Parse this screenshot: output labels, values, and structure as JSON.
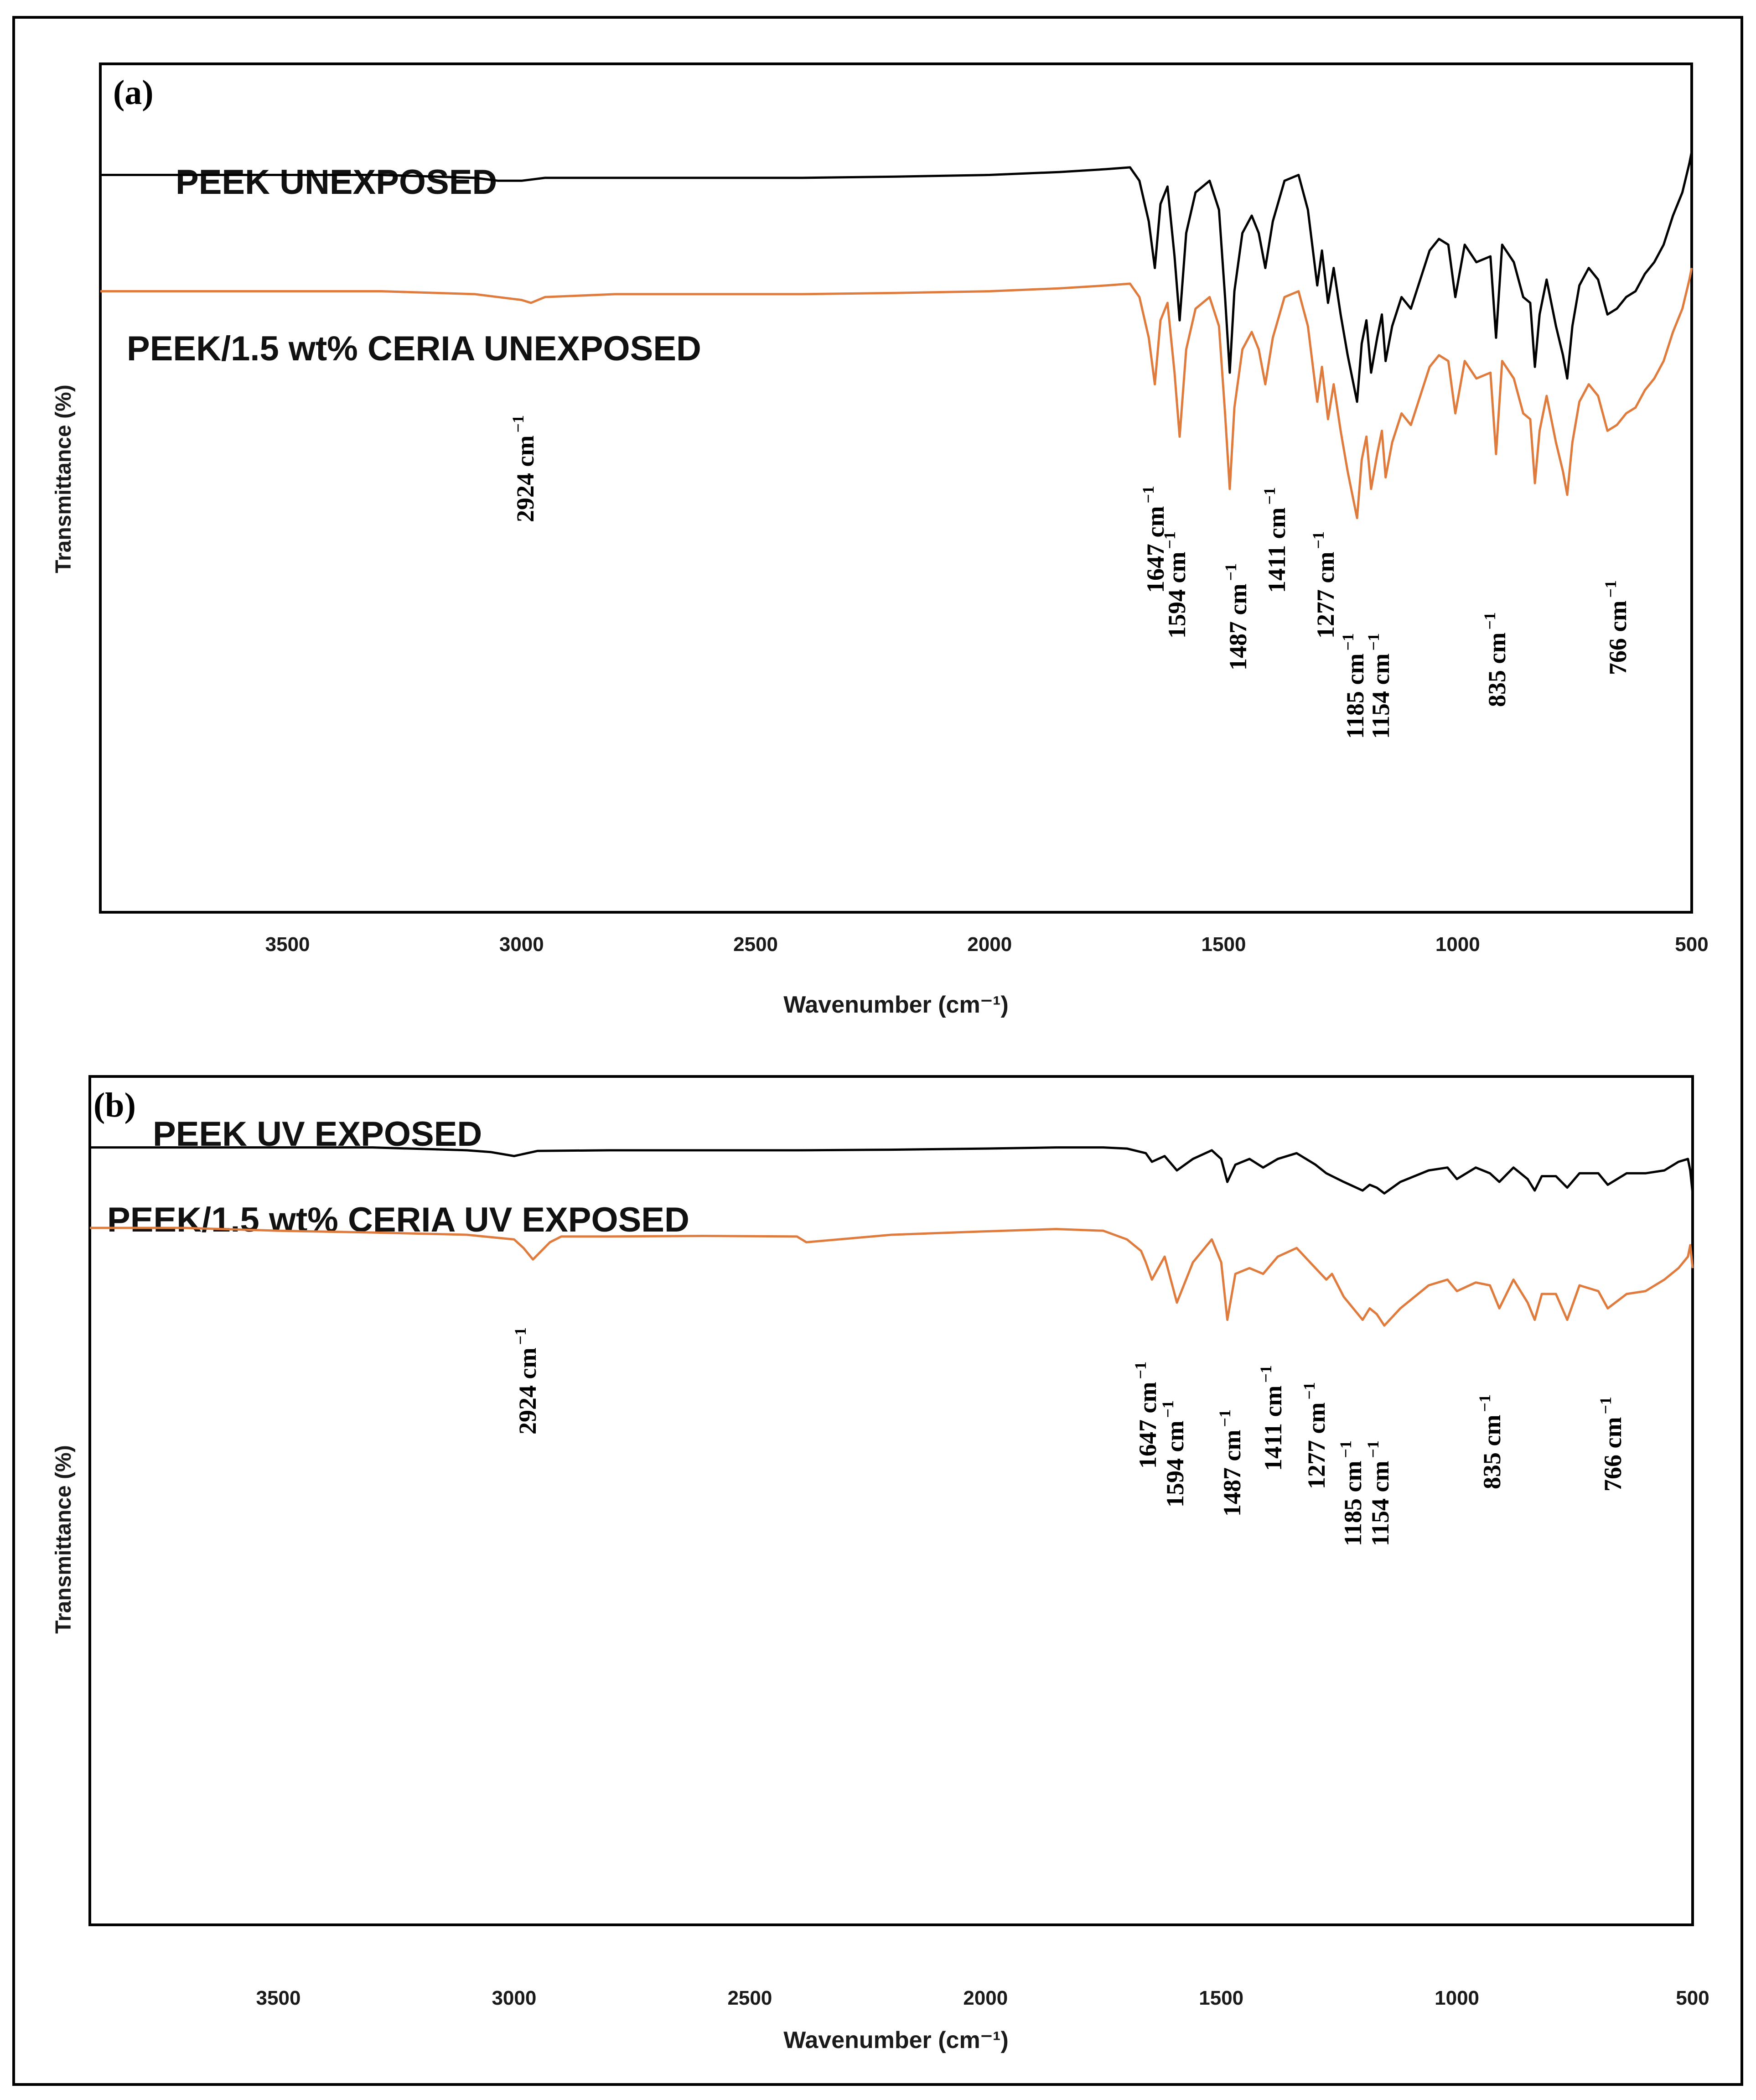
{
  "colors": {
    "unexposed_or_neat": "#000000",
    "ceria": "#e07b3e",
    "frame": "#000000"
  },
  "chart_data": [
    {
      "type": "line",
      "panel_label": "(a)",
      "xlabel": "Wavenumber (cm⁻¹)",
      "ylabel": "Transmittance (%)",
      "xlim": [
        3900,
        500
      ],
      "x_reversed": true,
      "ylim": [
        0,
        100
      ],
      "x_ticks": [
        "3500",
        "3000",
        "2500",
        "2000",
        "1500",
        "1000",
        "500"
      ],
      "grid": false,
      "series": [
        {
          "name": "PEEK UNEXPOSED",
          "color": "#000000",
          "x": [
            3900,
            3700,
            3500,
            3300,
            3100,
            3050,
            3000,
            2950,
            2800,
            2600,
            2400,
            2200,
            2000,
            1850,
            1750,
            1700,
            1680,
            1660,
            1647,
            1635,
            1620,
            1605,
            1594,
            1580,
            1560,
            1530,
            1510,
            1497,
            1487,
            1477,
            1460,
            1440,
            1425,
            1411,
            1395,
            1370,
            1340,
            1320,
            1300,
            1290,
            1277,
            1265,
            1250,
            1235,
            1215,
            1205,
            1195,
            1185,
            1172,
            1162,
            1154,
            1140,
            1120,
            1100,
            1060,
            1040,
            1020,
            1005,
            985,
            960,
            930,
            918,
            905,
            880,
            860,
            845,
            835,
            825,
            810,
            790,
            775,
            766,
            755,
            740,
            720,
            700,
            680,
            660,
            640,
            620,
            600,
            580,
            560,
            540,
            520,
            505,
            500
          ],
          "y": [
            86,
            86,
            86,
            86,
            85.5,
            85,
            85,
            85.5,
            85.5,
            85.5,
            85.5,
            85.7,
            86,
            86.5,
            87,
            87.3,
            85,
            78,
            70,
            81,
            84,
            72,
            61,
            76,
            83,
            85,
            80,
            65,
            52,
            66,
            76,
            79,
            76,
            70,
            78,
            85,
            86,
            80,
            67,
            73,
            64,
            70,
            62,
            55,
            47,
            57,
            61,
            52,
            58,
            62,
            54,
            60,
            65,
            63,
            73,
            75,
            74,
            65,
            74,
            71,
            72,
            58,
            74,
            71,
            65,
            64,
            53,
            62,
            68,
            60,
            55,
            51,
            60,
            67,
            70,
            68,
            62,
            63,
            65,
            66,
            69,
            71,
            74,
            79,
            83,
            88,
            90
          ]
        },
        {
          "name": "PEEK/1.5 wt% CERIA UNEXPOSED",
          "color": "#e07b3e",
          "x": [
            3900,
            3700,
            3500,
            3300,
            3100,
            3050,
            3000,
            2980,
            2950,
            2800,
            2600,
            2400,
            2200,
            2000,
            1850,
            1750,
            1700,
            1680,
            1660,
            1647,
            1635,
            1620,
            1605,
            1594,
            1580,
            1560,
            1530,
            1510,
            1497,
            1487,
            1477,
            1460,
            1440,
            1425,
            1411,
            1395,
            1370,
            1340,
            1320,
            1300,
            1290,
            1277,
            1265,
            1250,
            1235,
            1215,
            1205,
            1195,
            1185,
            1172,
            1162,
            1154,
            1140,
            1120,
            1100,
            1060,
            1040,
            1020,
            1005,
            985,
            960,
            930,
            918,
            905,
            880,
            860,
            845,
            835,
            825,
            810,
            790,
            775,
            766,
            755,
            740,
            720,
            700,
            680,
            660,
            640,
            620,
            600,
            580,
            560,
            540,
            520,
            505,
            500
          ],
          "y": [
            66,
            66,
            66,
            66,
            65.5,
            65,
            64.5,
            64,
            65,
            65.5,
            65.5,
            65.5,
            65.7,
            66,
            66.5,
            67,
            67.3,
            65,
            58,
            50,
            61,
            64,
            52,
            41,
            56,
            63,
            65,
            60,
            45,
            32,
            46,
            56,
            59,
            56,
            50,
            58,
            65,
            66,
            60,
            47,
            53,
            44,
            50,
            42,
            35,
            27,
            37,
            41,
            32,
            38,
            42,
            34,
            40,
            45,
            43,
            53,
            55,
            54,
            45,
            54,
            51,
            52,
            38,
            54,
            51,
            45,
            44,
            33,
            42,
            48,
            40,
            35,
            31,
            40,
            47,
            50,
            48,
            42,
            43,
            45,
            46,
            49,
            51,
            54,
            59,
            63,
            68,
            70
          ]
        }
      ],
      "annotations": [
        {
          "wavenumber": 2924,
          "label": "2924 cm",
          "superscript": "−1"
        },
        {
          "wavenumber": 1647,
          "label": "1647 cm",
          "superscript": "−1"
        },
        {
          "wavenumber": 1594,
          "label": "1594 cm",
          "superscript": "−1"
        },
        {
          "wavenumber": 1487,
          "label": "1487 cm",
          "superscript": "−1"
        },
        {
          "wavenumber": 1411,
          "label": "1411 cm",
          "superscript": "−1"
        },
        {
          "wavenumber": 1277,
          "label": "1277 cm",
          "superscript": "−1"
        },
        {
          "wavenumber": 1185,
          "label": "1185 cm",
          "superscript": "−1"
        },
        {
          "wavenumber": 1154,
          "label": "1154 cm",
          "superscript": "−1"
        },
        {
          "wavenumber": 835,
          "label": "835 cm",
          "superscript": "−1"
        },
        {
          "wavenumber": 766,
          "label": "766 cm",
          "superscript": "−1"
        }
      ]
    },
    {
      "type": "line",
      "panel_label": "(b)",
      "xlabel": "Wavenumber (cm⁻¹)",
      "ylabel": "Transmittance (%)",
      "xlim": [
        3900,
        500
      ],
      "x_reversed": true,
      "ylim": [
        0,
        100
      ],
      "x_ticks": [
        "3500",
        "3000",
        "2500",
        "2000",
        "1500",
        "1000",
        "500"
      ],
      "grid": false,
      "series": [
        {
          "name": "PEEK UV EXPOSED",
          "color": "#000000",
          "x": [
            3900,
            3700,
            3500,
            3300,
            3100,
            3050,
            3000,
            2950,
            2800,
            2600,
            2400,
            2200,
            2000,
            1850,
            1750,
            1700,
            1660,
            1647,
            1620,
            1594,
            1560,
            1520,
            1500,
            1487,
            1470,
            1440,
            1411,
            1380,
            1340,
            1300,
            1277,
            1240,
            1200,
            1185,
            1170,
            1154,
            1120,
            1060,
            1020,
            1000,
            960,
            930,
            910,
            880,
            850,
            835,
            820,
            790,
            766,
            740,
            700,
            680,
            640,
            600,
            560,
            530,
            510,
            505,
            500
          ],
          "y": [
            94,
            94,
            94,
            94,
            93.5,
            93.2,
            92.5,
            93.4,
            93.5,
            93.5,
            93.5,
            93.6,
            93.8,
            94,
            94,
            93.8,
            93,
            91.5,
            92.5,
            90,
            92,
            93.5,
            92,
            88,
            91,
            92,
            90.5,
            92,
            93,
            91,
            89.5,
            88,
            86.5,
            87.5,
            87,
            86,
            88,
            90,
            90.5,
            88.5,
            90.5,
            89.5,
            88,
            90.5,
            88.5,
            86.5,
            89,
            89,
            87,
            89.5,
            89.5,
            87.5,
            89.5,
            89.5,
            90,
            91.5,
            92,
            90,
            86
          ]
        },
        {
          "name": "PEEK/1.5 wt% CERIA UV EXPOSED",
          "color": "#e07b3e",
          "x": [
            3900,
            3700,
            3500,
            3300,
            3100,
            3050,
            3000,
            2980,
            2960,
            2924,
            2900,
            2800,
            2600,
            2400,
            2380,
            2200,
            2000,
            1850,
            1750,
            1700,
            1670,
            1660,
            1647,
            1620,
            1594,
            1560,
            1520,
            1500,
            1487,
            1470,
            1440,
            1411,
            1380,
            1340,
            1300,
            1277,
            1265,
            1240,
            1200,
            1185,
            1170,
            1154,
            1120,
            1060,
            1020,
            1000,
            960,
            930,
            910,
            880,
            850,
            835,
            820,
            790,
            766,
            740,
            700,
            680,
            640,
            600,
            560,
            530,
            510,
            505,
            500
          ],
          "y": [
            80,
            80,
            79.5,
            79.2,
            78.8,
            78.4,
            78,
            76.5,
            74.5,
            77.5,
            78.5,
            78.5,
            78.6,
            78.5,
            77.5,
            78.8,
            79.4,
            79.8,
            79.5,
            78,
            76,
            74,
            71,
            75,
            67,
            74,
            78,
            74,
            64,
            72,
            73,
            72,
            75,
            76.5,
            73,
            71,
            72,
            68,
            64,
            66,
            65,
            63,
            66,
            70,
            71,
            69,
            70.5,
            70,
            66,
            71,
            67,
            64,
            68.5,
            68.5,
            64,
            70,
            69,
            66,
            68.5,
            69,
            71,
            73,
            75,
            77,
            73
          ]
        }
      ],
      "annotations": [
        {
          "wavenumber": 2924,
          "label": "2924 cm",
          "superscript": "−1"
        },
        {
          "wavenumber": 1647,
          "label": "1647 cm",
          "superscript": "−1"
        },
        {
          "wavenumber": 1594,
          "label": "1594 cm",
          "superscript": "−1"
        },
        {
          "wavenumber": 1487,
          "label": "1487 cm",
          "superscript": "−1"
        },
        {
          "wavenumber": 1411,
          "label": "1411 cm",
          "superscript": "−1"
        },
        {
          "wavenumber": 1277,
          "label": "1277 cm",
          "superscript": "−1"
        },
        {
          "wavenumber": 1185,
          "label": "1185 cm",
          "superscript": "−1"
        },
        {
          "wavenumber": 1154,
          "label": "1154 cm",
          "superscript": "−1"
        },
        {
          "wavenumber": 835,
          "label": "835 cm",
          "superscript": "−1"
        },
        {
          "wavenumber": 766,
          "label": "766 cm",
          "superscript": "−1"
        }
      ]
    }
  ]
}
